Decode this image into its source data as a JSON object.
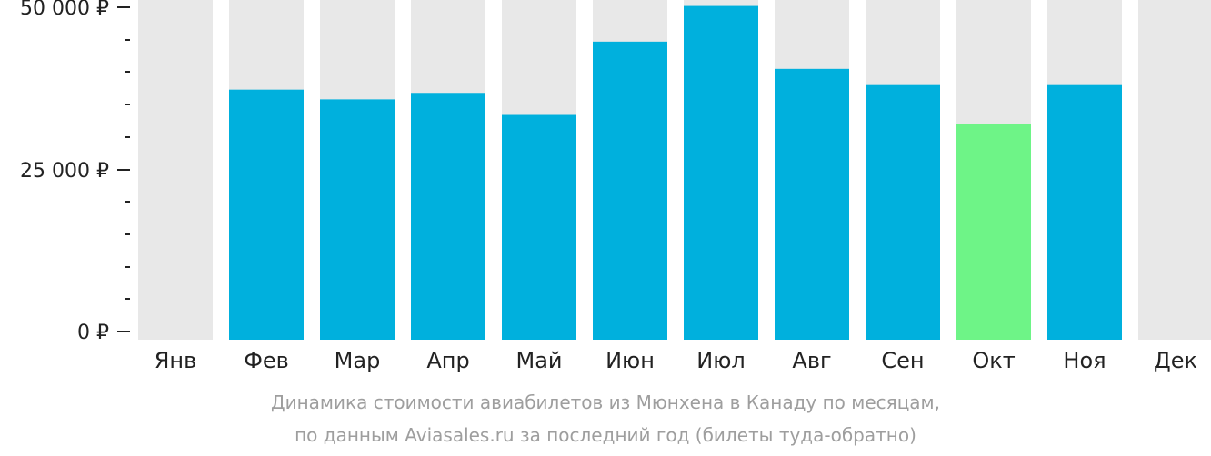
{
  "chart_data": {
    "type": "bar",
    "categories": [
      "Янв",
      "Фев",
      "Мар",
      "Апр",
      "Май",
      "Июн",
      "Июл",
      "Авг",
      "Сен",
      "Окт",
      "Ноя",
      "Дек"
    ],
    "values": [
      null,
      37300,
      35800,
      36800,
      33400,
      44700,
      50200,
      40500,
      38000,
      32000,
      38000,
      null
    ],
    "ylim": [
      0,
      51500
    ],
    "yticks": [
      {
        "value": 0,
        "label": "0 ₽"
      },
      {
        "value": 25000,
        "label": "25 000 ₽"
      },
      {
        "value": 50000,
        "label": "50 000 ₽"
      }
    ],
    "minor_tick_step": 5000,
    "colors": {
      "bar": "#00b0dd",
      "highlight": "#6ef487",
      "background_bar": "#e8e8e8",
      "axis_text": "#222222",
      "caption_text": "#9e9e9e"
    },
    "highlight_category": "Окт",
    "legend": "none",
    "grid": false
  },
  "caption": {
    "line1": "Динамика стоимости авиабилетов из Мюнхена в Канаду по месяцам,",
    "line2": "по данным Aviasales.ru за последний год (билеты туда-обратно)"
  }
}
